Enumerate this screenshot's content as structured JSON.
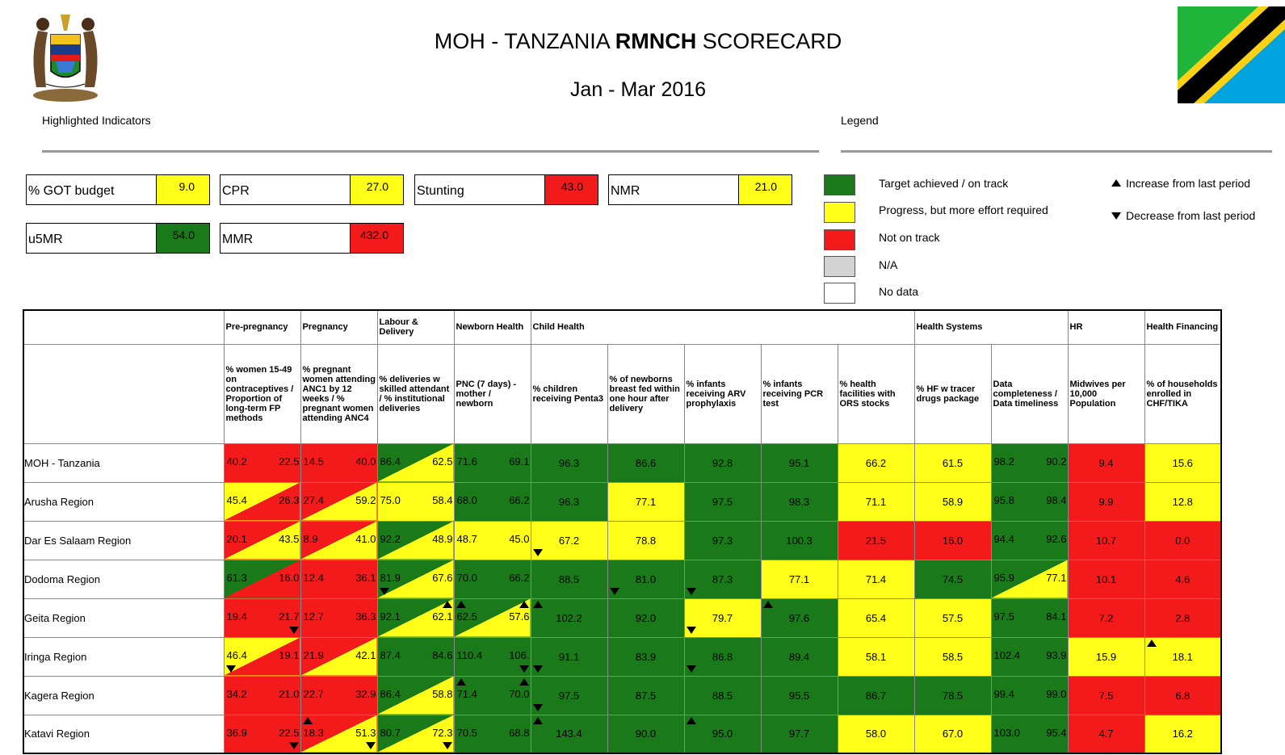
{
  "header": {
    "title_prefix": "MOH - TANZANIA ",
    "title_bold": "RMNCH",
    "title_suffix": " SCORECARD",
    "period": "Jan - Mar 2016",
    "highlighted_label": "Highlighted Indicators",
    "legend_label": "Legend"
  },
  "colors": {
    "green": "#1a7a1a",
    "yellow": "#ffff1a",
    "red": "#f21a1a",
    "grey": "#d3d3d3",
    "white": "#ffffff"
  },
  "kpis": [
    {
      "name": "% GOT budget",
      "value": "9.0",
      "color": "yellow"
    },
    {
      "name": "CPR",
      "value": "27.0",
      "color": "yellow"
    },
    {
      "name": "Stunting",
      "value": "43.0",
      "color": "red"
    },
    {
      "name": "NMR",
      "value": "21.0",
      "color": "yellow"
    },
    {
      "name": "u5MR",
      "value": "54.0",
      "color": "green"
    },
    {
      "name": "MMR",
      "value": "432.0",
      "color": "red"
    }
  ],
  "legend": {
    "items": [
      {
        "color": "green",
        "label": "Target achieved / on track"
      },
      {
        "color": "yellow",
        "label": "Progress, but more effort required"
      },
      {
        "color": "red",
        "label": "Not on track"
      },
      {
        "color": "grey",
        "label": "N/A"
      },
      {
        "color": "white",
        "label": "No data"
      }
    ],
    "increase": "Increase from last period",
    "decrease": "Decrease from last period"
  },
  "table": {
    "groups": [
      {
        "label": "Pre-pregnancy",
        "span": 1
      },
      {
        "label": "Pregnancy",
        "span": 1
      },
      {
        "label": "Labour & Delivery",
        "span": 1
      },
      {
        "label": "Newborn Health",
        "span": 1
      },
      {
        "label": "Child Health",
        "span": 5
      },
      {
        "label": "Health Systems",
        "span": 2
      },
      {
        "label": "HR",
        "span": 1
      },
      {
        "label": "Health Financing",
        "span": 1
      }
    ],
    "indicators": [
      "% women 15-49 on contraceptives / Proportion of long-term FP methods",
      "% pregnant women attending ANC1 by 12 weeks / % pregnant women attending ANC4",
      "% deliveries w skilled attendant / % institutional deliveries",
      "PNC (7 days) - mother / newborn",
      "% children receiving Penta3",
      "% of newborns breast fed within one hour after delivery",
      "% infants receiving ARV prophylaxis",
      "% infants receiving PCR test",
      "% health facilities with ORS stocks",
      "% HF w tracer drugs package",
      "Data completeness / Data timeliness",
      "Midwives per 10,000 Population",
      "% of households enrolled in CHF/TIKA"
    ],
    "rows": [
      {
        "region": "MOH - Tanzania",
        "cells": [
          {
            "c1": "red",
            "c2": "red",
            "v1": "40.2",
            "v2": "22.5"
          },
          {
            "c1": "red",
            "c2": "red",
            "v1": "14.5",
            "v2": "40.0"
          },
          {
            "c1": "green",
            "c2": "yellow",
            "v1": "86.4",
            "v2": "62.5"
          },
          {
            "c1": "green",
            "c2": "green",
            "v1": "71.6",
            "v2": "69.1"
          },
          {
            "c": "green",
            "v": "96.3"
          },
          {
            "c": "green",
            "v": "86.6"
          },
          {
            "c": "green",
            "v": "92.8"
          },
          {
            "c": "green",
            "v": "95.1"
          },
          {
            "c": "yellow",
            "v": "66.2"
          },
          {
            "c": "yellow",
            "v": "61.5"
          },
          {
            "c1": "green",
            "c2": "green",
            "v1": "98.2",
            "v2": "90.2"
          },
          {
            "c": "red",
            "v": "9.4"
          },
          {
            "c": "yellow",
            "v": "15.6"
          }
        ]
      },
      {
        "region": "Arusha Region",
        "cells": [
          {
            "c1": "yellow",
            "c2": "red",
            "v1": "45.4",
            "v2": "26.3"
          },
          {
            "c1": "red",
            "c2": "yellow",
            "v1": "27.4",
            "v2": "59.2"
          },
          {
            "c1": "yellow",
            "c2": "yellow",
            "v1": "75.0",
            "v2": "58.4"
          },
          {
            "c1": "green",
            "c2": "green",
            "v1": "68.0",
            "v2": "66.2"
          },
          {
            "c": "green",
            "v": "96.3"
          },
          {
            "c": "yellow",
            "v": "77.1"
          },
          {
            "c": "green",
            "v": "97.5"
          },
          {
            "c": "green",
            "v": "98.3"
          },
          {
            "c": "yellow",
            "v": "71.1"
          },
          {
            "c": "yellow",
            "v": "58.9"
          },
          {
            "c1": "green",
            "c2": "green",
            "v1": "95.8",
            "v2": "98.4"
          },
          {
            "c": "red",
            "v": "9.9"
          },
          {
            "c": "yellow",
            "v": "12.8"
          }
        ]
      },
      {
        "region": "Dar Es Salaam Region",
        "cells": [
          {
            "c1": "red",
            "c2": "yellow",
            "v1": "20.1",
            "v2": "43.5"
          },
          {
            "c1": "red",
            "c2": "yellow",
            "v1": "8.9",
            "v2": "41.0"
          },
          {
            "c1": "green",
            "c2": "yellow",
            "v1": "92.2",
            "v2": "48.9"
          },
          {
            "c1": "yellow",
            "c2": "yellow",
            "v1": "48.7",
            "v2": "45.0"
          },
          {
            "c": "yellow",
            "v": "67.2",
            "arrow": "down"
          },
          {
            "c": "yellow",
            "v": "78.8"
          },
          {
            "c": "green",
            "v": "97.3"
          },
          {
            "c": "green",
            "v": "100.3"
          },
          {
            "c": "red",
            "v": "21.5"
          },
          {
            "c": "red",
            "v": "16.0"
          },
          {
            "c1": "green",
            "c2": "green",
            "v1": "94.4",
            "v2": "92.6"
          },
          {
            "c": "red",
            "v": "10.7"
          },
          {
            "c": "red",
            "v": "0.0"
          }
        ]
      },
      {
        "region": "Dodoma Region",
        "cells": [
          {
            "c1": "green",
            "c2": "red",
            "v1": "61.3",
            "v2": "16.0"
          },
          {
            "c1": "red",
            "c2": "red",
            "v1": "12.4",
            "v2": "36.1"
          },
          {
            "c1": "green",
            "c2": "yellow",
            "v1": "81.9",
            "v2": "67.6",
            "a1": "down"
          },
          {
            "c1": "green",
            "c2": "green",
            "v1": "70.0",
            "v2": "66.2"
          },
          {
            "c": "green",
            "v": "88.5"
          },
          {
            "c": "green",
            "v": "81.0",
            "arrow": "down"
          },
          {
            "c": "green",
            "v": "87.3",
            "arrow": "down"
          },
          {
            "c": "yellow",
            "v": "77.1"
          },
          {
            "c": "yellow",
            "v": "71.4"
          },
          {
            "c": "green",
            "v": "74.5"
          },
          {
            "c1": "green",
            "c2": "yellow",
            "v1": "95.9",
            "v2": "77.1"
          },
          {
            "c": "red",
            "v": "10.1"
          },
          {
            "c": "red",
            "v": "4.6"
          }
        ]
      },
      {
        "region": "Geita Region",
        "cells": [
          {
            "c1": "red",
            "c2": "red",
            "v1": "19.4",
            "v2": "21.7",
            "a2": "down"
          },
          {
            "c1": "red",
            "c2": "red",
            "v1": "12.7",
            "v2": "36.3"
          },
          {
            "c1": "green",
            "c2": "yellow",
            "v1": "92.1",
            "v2": "62.1",
            "a2": "up"
          },
          {
            "c1": "green",
            "c2": "yellow",
            "v1": "62.5",
            "v2": "57.6",
            "a1": "up",
            "a2": "up"
          },
          {
            "c": "green",
            "v": "102.2",
            "arrow": "up"
          },
          {
            "c": "green",
            "v": "92.0"
          },
          {
            "c": "yellow",
            "v": "79.7",
            "arrow": "down"
          },
          {
            "c": "green",
            "v": "97.6",
            "arrow": "up"
          },
          {
            "c": "yellow",
            "v": "65.4"
          },
          {
            "c": "yellow",
            "v": "57.5"
          },
          {
            "c1": "green",
            "c2": "green",
            "v1": "97.5",
            "v2": "84.1"
          },
          {
            "c": "red",
            "v": "7.2"
          },
          {
            "c": "red",
            "v": "2.8"
          }
        ]
      },
      {
        "region": "Iringa Region",
        "cells": [
          {
            "c1": "yellow",
            "c2": "red",
            "v1": "46.4",
            "v2": "19.1",
            "a1": "down"
          },
          {
            "c1": "red",
            "c2": "yellow",
            "v1": "21.9",
            "v2": "42.1"
          },
          {
            "c1": "green",
            "c2": "green",
            "v1": "87.4",
            "v2": "84.6"
          },
          {
            "c1": "green",
            "c2": "green",
            "v1": "110.4",
            "v2": "106.",
            "a2": "down"
          },
          {
            "c": "green",
            "v": "91.1",
            "arrow": "down"
          },
          {
            "c": "green",
            "v": "83.9"
          },
          {
            "c": "green",
            "v": "86.8",
            "arrow": "down"
          },
          {
            "c": "green",
            "v": "89.4"
          },
          {
            "c": "yellow",
            "v": "58.1"
          },
          {
            "c": "yellow",
            "v": "58.5"
          },
          {
            "c1": "green",
            "c2": "green",
            "v1": "102.4",
            "v2": "93.9"
          },
          {
            "c": "yellow",
            "v": "15.9"
          },
          {
            "c": "yellow",
            "v": "18.1",
            "arrow": "up"
          }
        ]
      },
      {
        "region": "Kagera Region",
        "cells": [
          {
            "c1": "red",
            "c2": "red",
            "v1": "34.2",
            "v2": "21.0"
          },
          {
            "c1": "red",
            "c2": "red",
            "v1": "22.7",
            "v2": "32.9"
          },
          {
            "c1": "green",
            "c2": "yellow",
            "v1": "86.4",
            "v2": "58.8"
          },
          {
            "c1": "green",
            "c2": "green",
            "v1": "71.4",
            "v2": "70.0",
            "a1": "up",
            "a2": "up"
          },
          {
            "c": "green",
            "v": "97.5",
            "arrow": "down"
          },
          {
            "c": "green",
            "v": "87.5"
          },
          {
            "c": "green",
            "v": "88.5"
          },
          {
            "c": "green",
            "v": "95.5"
          },
          {
            "c": "green",
            "v": "86.7"
          },
          {
            "c": "green",
            "v": "78.5"
          },
          {
            "c1": "green",
            "c2": "green",
            "v1": "99.4",
            "v2": "99.0"
          },
          {
            "c": "red",
            "v": "7.5"
          },
          {
            "c": "red",
            "v": "6.8"
          }
        ]
      },
      {
        "region": "Katavi Region",
        "cells": [
          {
            "c1": "red",
            "c2": "red",
            "v1": "36.9",
            "v2": "22.5",
            "a2": "down"
          },
          {
            "c1": "red",
            "c2": "yellow",
            "v1": "18.3",
            "v2": "51.3",
            "a1": "up",
            "a2": "down"
          },
          {
            "c1": "green",
            "c2": "yellow",
            "v1": "80.7",
            "v2": "72.3",
            "a2": "down"
          },
          {
            "c1": "green",
            "c2": "green",
            "v1": "70.5",
            "v2": "68.8"
          },
          {
            "c": "green",
            "v": "143.4",
            "arrow": "up"
          },
          {
            "c": "green",
            "v": "90.0"
          },
          {
            "c": "green",
            "v": "95.0",
            "arrow": "up"
          },
          {
            "c": "green",
            "v": "97.7"
          },
          {
            "c": "yellow",
            "v": "58.0"
          },
          {
            "c": "yellow",
            "v": "67.0"
          },
          {
            "c1": "green",
            "c2": "green",
            "v1": "103.0",
            "v2": "95.4"
          },
          {
            "c": "red",
            "v": "4.7"
          },
          {
            "c": "yellow",
            "v": "16.2"
          }
        ]
      }
    ]
  }
}
